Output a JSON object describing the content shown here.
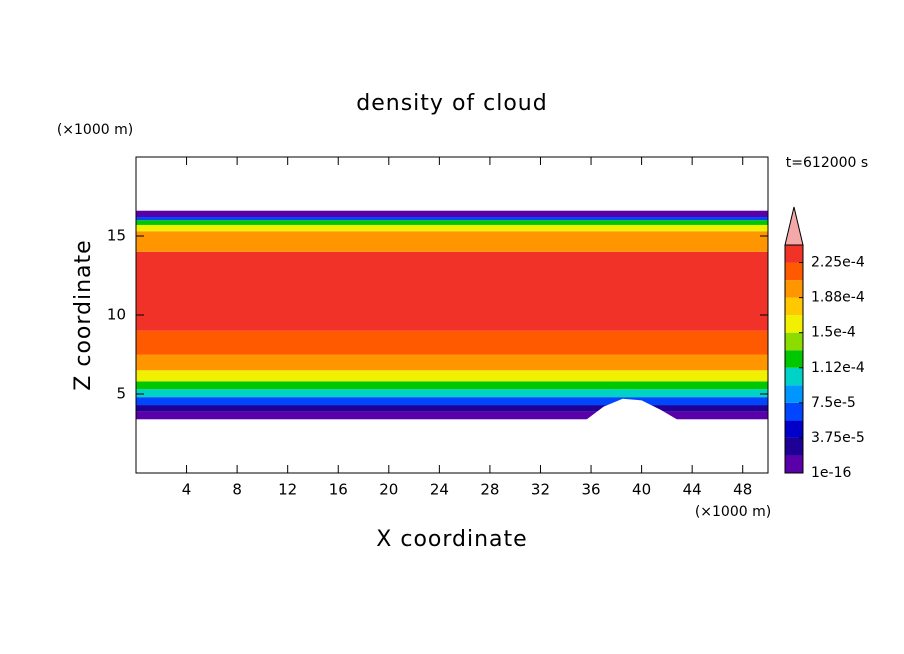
{
  "chart_data": {
    "type": "contour",
    "title": "density of cloud",
    "x_label": "X coordinate",
    "y_label": "Z coordinate",
    "x_unit": "(×1000 m)",
    "y_unit": "(×1000 m)",
    "time_label": "t=612000 s",
    "xlim": [
      0,
      50
    ],
    "ylim": [
      0,
      20
    ],
    "xticks": [
      4,
      8,
      12,
      16,
      20,
      24,
      28,
      32,
      36,
      40,
      44,
      48
    ],
    "yticks": [
      5,
      10,
      15
    ],
    "z_edges": [
      3.4,
      3.9,
      4.3,
      4.8,
      5.3,
      5.8,
      6.5,
      7.5,
      9,
      14,
      15.3,
      15.7,
      16,
      16.2,
      16.6
    ],
    "values": [
      1e-16,
      3e-05,
      6e-05,
      0.0001,
      0.00013,
      0.000165,
      0.00019,
      0.00021,
      0.00023,
      0.000205,
      0.00016,
      0.00013,
      7e-05,
      1e-05
    ],
    "colorbar": {
      "clim": [
        1e-16,
        0.00024375
      ],
      "colors": [
        "#5a00a8",
        "#1e0096",
        "#0000c8",
        "#0046ff",
        "#0096ff",
        "#00d2c8",
        "#00c800",
        "#8cdc00",
        "#f0f000",
        "#ffc800",
        "#ff9600",
        "#ff5a00",
        "#f03228"
      ],
      "extend_color": "#f4a8a8",
      "ticks": [
        {
          "value": 1e-16,
          "label": "1e-16"
        },
        {
          "value": 3.75e-05,
          "label": "3.75e-5"
        },
        {
          "value": 7.5e-05,
          "label": "7.5e-5"
        },
        {
          "value": 0.0001125,
          "label": "1.12e-4"
        },
        {
          "value": 0.00015,
          "label": "1.5e-4"
        },
        {
          "value": 0.0001875,
          "label": "1.88e-4"
        },
        {
          "value": 0.000225,
          "label": "2.25e-4"
        }
      ]
    }
  }
}
